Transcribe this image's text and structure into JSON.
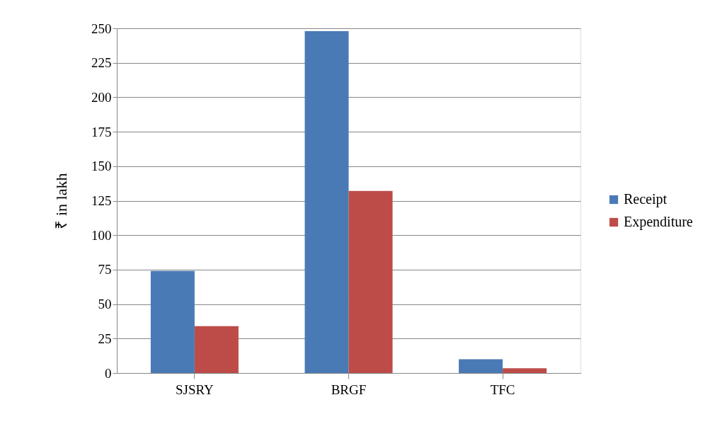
{
  "chart_data": {
    "type": "bar",
    "ylabel": "₹ in lakh",
    "categories": [
      "SJSRY",
      "BRGF",
      "TFC"
    ],
    "series": [
      {
        "name": "Receipt",
        "color": "#4a7ab5",
        "values": [
          74,
          248,
          10
        ]
      },
      {
        "name": "Expenditure",
        "color": "#bd4c49",
        "values": [
          34,
          132,
          3.5
        ]
      }
    ],
    "ylim": [
      0,
      250
    ],
    "yticks": [
      0,
      25,
      50,
      75,
      100,
      125,
      150,
      175,
      200,
      225,
      250
    ],
    "grid": "y",
    "legend": "right"
  }
}
